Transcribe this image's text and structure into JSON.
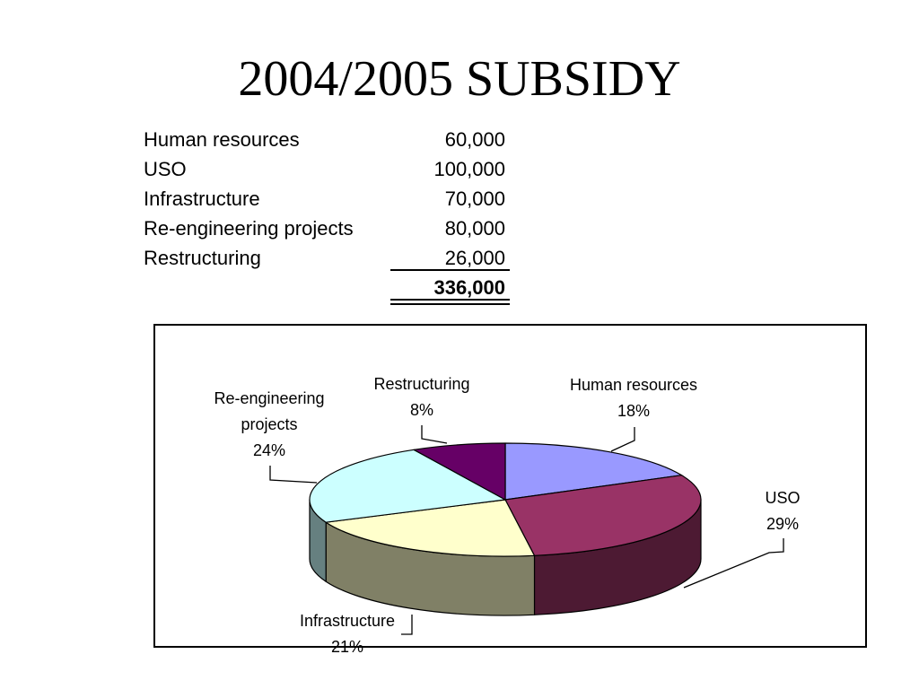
{
  "slide": {
    "title": "2004/2005 SUBSIDY"
  },
  "table": {
    "rows": [
      {
        "label": "Human resources",
        "value": "60,000"
      },
      {
        "label": "USO",
        "value": "100,000"
      },
      {
        "label": "Infrastructure",
        "value": "70,000"
      },
      {
        "label": "Re-engineering projects",
        "value": "80,000"
      },
      {
        "label": "Restructuring",
        "value": "26,000"
      }
    ],
    "total": "336,000"
  },
  "chart_data": {
    "type": "pie",
    "three_d": true,
    "categories": [
      "Human resources",
      "USO",
      "Infrastructure",
      "Re-engineering projects",
      "Restructuring"
    ],
    "values": [
      60000,
      100000,
      70000,
      80000,
      26000
    ],
    "data_labels": [
      "18%",
      "29%",
      "21%",
      "24%",
      "8%"
    ],
    "colors": [
      "#9999FF",
      "#993366",
      "#FFFFCC",
      "#CCFFFF",
      "#660066"
    ]
  }
}
